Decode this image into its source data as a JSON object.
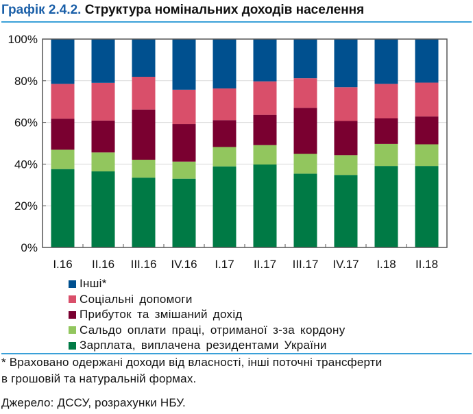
{
  "header": {
    "number": "Графік 2.4.2.",
    "title": "Структура номінальних доходів населення"
  },
  "chart_data": {
    "type": "bar",
    "stacked": true,
    "title": "Структура номінальних доходів населення",
    "categories": [
      "I.16",
      "II.16",
      "III.16",
      "IV.16",
      "I.17",
      "II.17",
      "III.17",
      "IV.17",
      "I.18",
      "II.18"
    ],
    "ylim": [
      0,
      100
    ],
    "yticks": [
      0,
      20,
      40,
      60,
      80,
      100
    ],
    "ytick_labels": [
      "0%",
      "20%",
      "40%",
      "60%",
      "80%",
      "100%"
    ],
    "grid": true,
    "legend_placement": "bottom",
    "series": [
      {
        "name": "Зарплата, виплачена резидентами України",
        "color": "#007a45",
        "values": [
          37.6,
          36.5,
          33.5,
          33.0,
          38.9,
          39.8,
          35.4,
          34.8,
          39.1,
          39.1
        ]
      },
      {
        "name": "Сальдо оплати праці, отриманої з-за кордону",
        "color": "#92c65e",
        "values": [
          9.3,
          9.1,
          8.6,
          8.2,
          9.3,
          9.3,
          9.5,
          9.5,
          10.6,
          10.4
        ]
      },
      {
        "name": "Прибуток та змішаний дохід",
        "color": "#7a0030",
        "values": [
          14.9,
          15.3,
          24.1,
          18.0,
          12.9,
          14.5,
          22.1,
          16.4,
          12.3,
          13.4
        ]
      },
      {
        "name": "Соціальні допомоги",
        "color": "#d94f6a",
        "values": [
          16.7,
          18.1,
          15.7,
          16.5,
          15.2,
          16.1,
          14.2,
          16.2,
          16.5,
          16.2
        ]
      },
      {
        "name": "Інші*",
        "color": "#00508f",
        "values": [
          21.5,
          21.0,
          18.1,
          24.3,
          23.7,
          20.3,
          18.8,
          23.1,
          21.5,
          20.9
        ]
      }
    ]
  },
  "legend_order": [
    4,
    3,
    2,
    1,
    0
  ],
  "footnote": "* Враховано одержані доходи від власності, інші поточні трансферти",
  "footnote2": "в грошовій та натуральній формах.",
  "source": "Джерело: ДССУ, розрахунки НБУ."
}
